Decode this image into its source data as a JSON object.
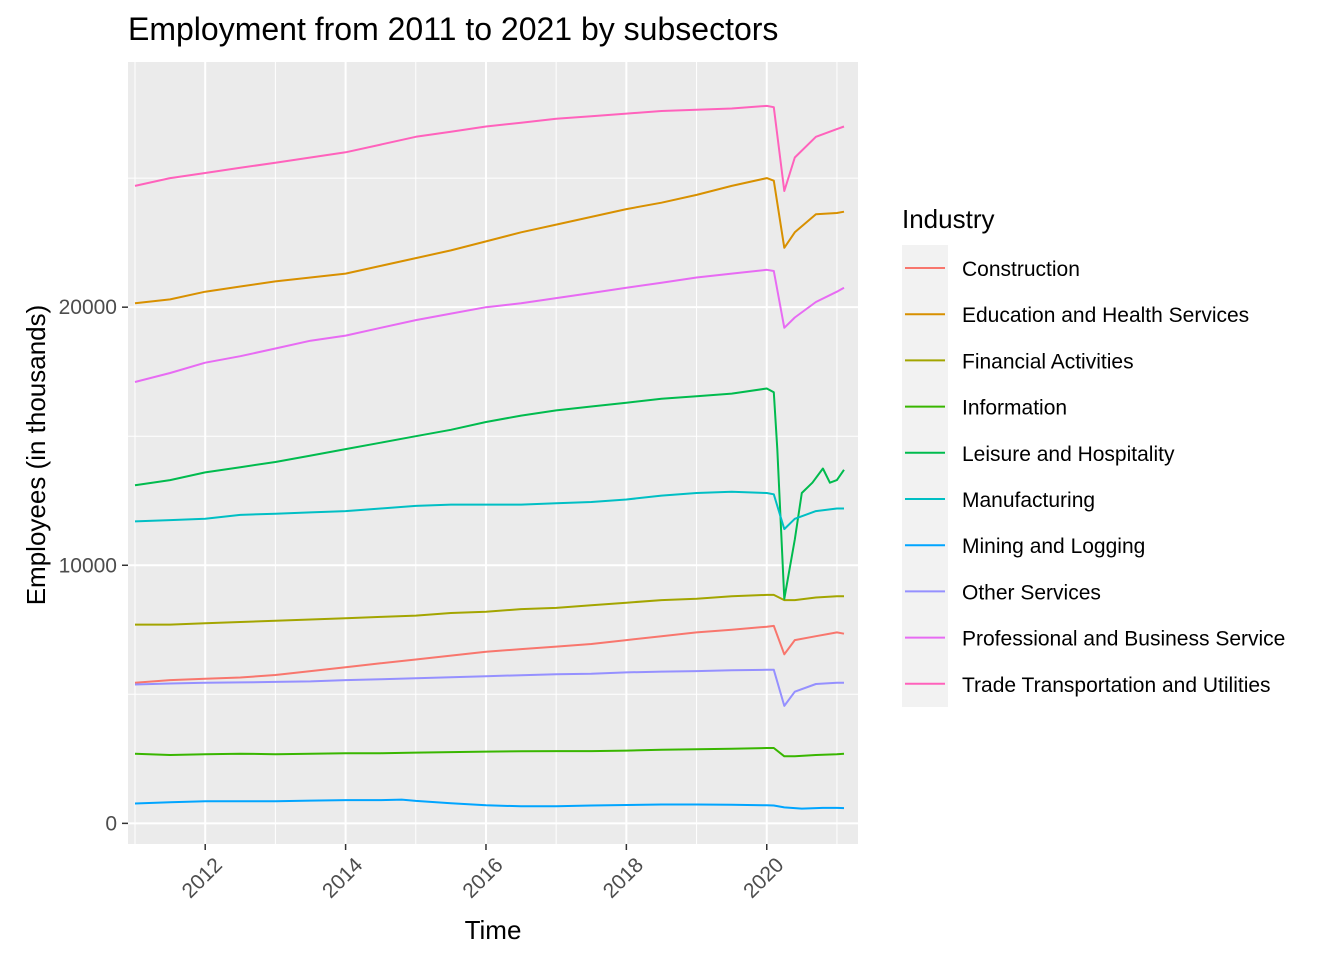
{
  "chart_data": {
    "type": "line",
    "title": "Employment from 2011 to 2021 by subsectors",
    "xlabel": "Time",
    "ylabel": "Employees (in thousands)",
    "xlim": [
      2010.9,
      2021.3
    ],
    "ylim": [
      -800,
      29500
    ],
    "x_ticks": [
      2012,
      2014,
      2016,
      2018,
      2020
    ],
    "y_ticks": [
      0,
      10000,
      20000
    ],
    "grid": true,
    "legend": {
      "title": "Industry",
      "placement": "right"
    },
    "series": [
      {
        "name": "Construction",
        "color": "#F8766D",
        "points": [
          [
            2011.0,
            5450
          ],
          [
            2011.5,
            5550
          ],
          [
            2012.0,
            5600
          ],
          [
            2012.5,
            5650
          ],
          [
            2013.0,
            5750
          ],
          [
            2013.5,
            5900
          ],
          [
            2014.0,
            6050
          ],
          [
            2014.5,
            6200
          ],
          [
            2015.0,
            6350
          ],
          [
            2015.5,
            6500
          ],
          [
            2016.0,
            6650
          ],
          [
            2016.5,
            6750
          ],
          [
            2017.0,
            6850
          ],
          [
            2017.5,
            6950
          ],
          [
            2018.0,
            7100
          ],
          [
            2018.5,
            7250
          ],
          [
            2019.0,
            7400
          ],
          [
            2019.5,
            7500
          ],
          [
            2020.0,
            7620
          ],
          [
            2020.1,
            7650
          ],
          [
            2020.25,
            6550
          ],
          [
            2020.4,
            7100
          ],
          [
            2020.7,
            7250
          ],
          [
            2021.0,
            7400
          ],
          [
            2021.1,
            7350
          ]
        ]
      },
      {
        "name": "Education and Health Services",
        "color": "#D89000",
        "points": [
          [
            2011.0,
            20150
          ],
          [
            2011.5,
            20300
          ],
          [
            2012.0,
            20600
          ],
          [
            2012.5,
            20800
          ],
          [
            2013.0,
            21000
          ],
          [
            2013.5,
            21150
          ],
          [
            2014.0,
            21300
          ],
          [
            2014.5,
            21600
          ],
          [
            2015.0,
            21900
          ],
          [
            2015.5,
            22200
          ],
          [
            2016.0,
            22550
          ],
          [
            2016.5,
            22900
          ],
          [
            2017.0,
            23200
          ],
          [
            2017.5,
            23500
          ],
          [
            2018.0,
            23800
          ],
          [
            2018.5,
            24050
          ],
          [
            2019.0,
            24350
          ],
          [
            2019.5,
            24700
          ],
          [
            2020.0,
            25000
          ],
          [
            2020.1,
            24900
          ],
          [
            2020.25,
            22300
          ],
          [
            2020.4,
            22900
          ],
          [
            2020.7,
            23600
          ],
          [
            2021.0,
            23650
          ],
          [
            2021.1,
            23700
          ]
        ]
      },
      {
        "name": "Financial Activities",
        "color": "#A3A500",
        "points": [
          [
            2011.0,
            7700
          ],
          [
            2011.5,
            7700
          ],
          [
            2012.0,
            7750
          ],
          [
            2012.5,
            7800
          ],
          [
            2013.0,
            7850
          ],
          [
            2013.5,
            7900
          ],
          [
            2014.0,
            7950
          ],
          [
            2014.5,
            8000
          ],
          [
            2015.0,
            8050
          ],
          [
            2015.5,
            8150
          ],
          [
            2016.0,
            8200
          ],
          [
            2016.5,
            8300
          ],
          [
            2017.0,
            8350
          ],
          [
            2017.5,
            8450
          ],
          [
            2018.0,
            8550
          ],
          [
            2018.5,
            8650
          ],
          [
            2019.0,
            8700
          ],
          [
            2019.5,
            8800
          ],
          [
            2020.0,
            8850
          ],
          [
            2020.1,
            8850
          ],
          [
            2020.25,
            8650
          ],
          [
            2020.4,
            8650
          ],
          [
            2020.7,
            8750
          ],
          [
            2021.0,
            8800
          ],
          [
            2021.1,
            8800
          ]
        ]
      },
      {
        "name": "Information",
        "color": "#39B600",
        "points": [
          [
            2011.0,
            2700
          ],
          [
            2011.5,
            2650
          ],
          [
            2012.0,
            2680
          ],
          [
            2012.5,
            2700
          ],
          [
            2013.0,
            2680
          ],
          [
            2013.5,
            2700
          ],
          [
            2014.0,
            2720
          ],
          [
            2014.5,
            2720
          ],
          [
            2015.0,
            2740
          ],
          [
            2015.5,
            2760
          ],
          [
            2016.0,
            2780
          ],
          [
            2016.5,
            2790
          ],
          [
            2017.0,
            2800
          ],
          [
            2017.5,
            2800
          ],
          [
            2018.0,
            2820
          ],
          [
            2018.5,
            2850
          ],
          [
            2019.0,
            2870
          ],
          [
            2019.5,
            2890
          ],
          [
            2020.0,
            2920
          ],
          [
            2020.1,
            2920
          ],
          [
            2020.25,
            2600
          ],
          [
            2020.4,
            2600
          ],
          [
            2020.7,
            2650
          ],
          [
            2021.0,
            2680
          ],
          [
            2021.1,
            2700
          ]
        ]
      },
      {
        "name": "Leisure and Hospitality",
        "color": "#00BB4E",
        "points": [
          [
            2011.0,
            13100
          ],
          [
            2011.5,
            13300
          ],
          [
            2012.0,
            13600
          ],
          [
            2012.5,
            13800
          ],
          [
            2013.0,
            14000
          ],
          [
            2013.5,
            14250
          ],
          [
            2014.0,
            14500
          ],
          [
            2014.5,
            14750
          ],
          [
            2015.0,
            15000
          ],
          [
            2015.5,
            15250
          ],
          [
            2016.0,
            15550
          ],
          [
            2016.5,
            15800
          ],
          [
            2017.0,
            16000
          ],
          [
            2017.5,
            16150
          ],
          [
            2018.0,
            16300
          ],
          [
            2018.5,
            16450
          ],
          [
            2019.0,
            16550
          ],
          [
            2019.5,
            16650
          ],
          [
            2020.0,
            16850
          ],
          [
            2020.1,
            16700
          ],
          [
            2020.15,
            14500
          ],
          [
            2020.25,
            8700
          ],
          [
            2020.4,
            11000
          ],
          [
            2020.5,
            12800
          ],
          [
            2020.65,
            13200
          ],
          [
            2020.8,
            13750
          ],
          [
            2020.9,
            13200
          ],
          [
            2021.0,
            13300
          ],
          [
            2021.1,
            13700
          ]
        ]
      },
      {
        "name": "Manufacturing",
        "color": "#00BFC4",
        "points": [
          [
            2011.0,
            11700
          ],
          [
            2011.5,
            11750
          ],
          [
            2012.0,
            11800
          ],
          [
            2012.5,
            11950
          ],
          [
            2013.0,
            12000
          ],
          [
            2013.5,
            12050
          ],
          [
            2014.0,
            12100
          ],
          [
            2014.5,
            12200
          ],
          [
            2015.0,
            12300
          ],
          [
            2015.5,
            12350
          ],
          [
            2016.0,
            12350
          ],
          [
            2016.5,
            12350
          ],
          [
            2017.0,
            12400
          ],
          [
            2017.5,
            12450
          ],
          [
            2018.0,
            12550
          ],
          [
            2018.5,
            12700
          ],
          [
            2019.0,
            12800
          ],
          [
            2019.5,
            12850
          ],
          [
            2020.0,
            12800
          ],
          [
            2020.1,
            12750
          ],
          [
            2020.25,
            11400
          ],
          [
            2020.4,
            11800
          ],
          [
            2020.7,
            12100
          ],
          [
            2021.0,
            12200
          ],
          [
            2021.1,
            12200
          ]
        ]
      },
      {
        "name": "Mining and Logging",
        "color": "#00A5FF",
        "points": [
          [
            2011.0,
            770
          ],
          [
            2011.5,
            820
          ],
          [
            2012.0,
            860
          ],
          [
            2012.5,
            860
          ],
          [
            2013.0,
            860
          ],
          [
            2013.5,
            880
          ],
          [
            2014.0,
            900
          ],
          [
            2014.5,
            900
          ],
          [
            2014.8,
            920
          ],
          [
            2015.0,
            870
          ],
          [
            2015.5,
            780
          ],
          [
            2016.0,
            700
          ],
          [
            2016.5,
            660
          ],
          [
            2017.0,
            660
          ],
          [
            2017.5,
            690
          ],
          [
            2018.0,
            710
          ],
          [
            2018.5,
            730
          ],
          [
            2019.0,
            730
          ],
          [
            2019.5,
            720
          ],
          [
            2020.0,
            700
          ],
          [
            2020.1,
            690
          ],
          [
            2020.25,
            620
          ],
          [
            2020.5,
            570
          ],
          [
            2020.8,
            600
          ],
          [
            2021.0,
            600
          ],
          [
            2021.1,
            590
          ]
        ]
      },
      {
        "name": "Other Services",
        "color": "#9590FF",
        "points": [
          [
            2011.0,
            5380
          ],
          [
            2011.5,
            5420
          ],
          [
            2012.0,
            5450
          ],
          [
            2012.5,
            5460
          ],
          [
            2013.0,
            5480
          ],
          [
            2013.5,
            5500
          ],
          [
            2014.0,
            5550
          ],
          [
            2014.5,
            5580
          ],
          [
            2015.0,
            5620
          ],
          [
            2015.5,
            5660
          ],
          [
            2016.0,
            5700
          ],
          [
            2016.5,
            5740
          ],
          [
            2017.0,
            5780
          ],
          [
            2017.5,
            5800
          ],
          [
            2018.0,
            5850
          ],
          [
            2018.5,
            5880
          ],
          [
            2019.0,
            5900
          ],
          [
            2019.5,
            5930
          ],
          [
            2020.0,
            5950
          ],
          [
            2020.1,
            5950
          ],
          [
            2020.25,
            4550
          ],
          [
            2020.4,
            5100
          ],
          [
            2020.7,
            5400
          ],
          [
            2021.0,
            5450
          ],
          [
            2021.1,
            5450
          ]
        ]
      },
      {
        "name": "Professional and Business Service",
        "color": "#E76BF3",
        "points": [
          [
            2011.0,
            17100
          ],
          [
            2011.5,
            17450
          ],
          [
            2012.0,
            17850
          ],
          [
            2012.5,
            18100
          ],
          [
            2013.0,
            18400
          ],
          [
            2013.5,
            18700
          ],
          [
            2014.0,
            18900
          ],
          [
            2014.5,
            19200
          ],
          [
            2015.0,
            19500
          ],
          [
            2015.5,
            19750
          ],
          [
            2016.0,
            20000
          ],
          [
            2016.5,
            20150
          ],
          [
            2017.0,
            20350
          ],
          [
            2017.5,
            20550
          ],
          [
            2018.0,
            20750
          ],
          [
            2018.5,
            20950
          ],
          [
            2019.0,
            21150
          ],
          [
            2019.5,
            21300
          ],
          [
            2020.0,
            21450
          ],
          [
            2020.1,
            21400
          ],
          [
            2020.25,
            19200
          ],
          [
            2020.4,
            19600
          ],
          [
            2020.7,
            20200
          ],
          [
            2021.0,
            20600
          ],
          [
            2021.1,
            20750
          ]
        ]
      },
      {
        "name": "Trade Transportation and Utilities",
        "color": "#FF62BC",
        "points": [
          [
            2011.0,
            24700
          ],
          [
            2011.5,
            25000
          ],
          [
            2012.0,
            25200
          ],
          [
            2012.5,
            25400
          ],
          [
            2013.0,
            25600
          ],
          [
            2013.5,
            25800
          ],
          [
            2014.0,
            26000
          ],
          [
            2014.5,
            26300
          ],
          [
            2015.0,
            26600
          ],
          [
            2015.5,
            26800
          ],
          [
            2016.0,
            27000
          ],
          [
            2016.5,
            27150
          ],
          [
            2017.0,
            27300
          ],
          [
            2017.5,
            27400
          ],
          [
            2018.0,
            27500
          ],
          [
            2018.5,
            27600
          ],
          [
            2019.0,
            27650
          ],
          [
            2019.5,
            27700
          ],
          [
            2020.0,
            27800
          ],
          [
            2020.1,
            27750
          ],
          [
            2020.25,
            24500
          ],
          [
            2020.4,
            25800
          ],
          [
            2020.7,
            26600
          ],
          [
            2021.0,
            26900
          ],
          [
            2021.1,
            27000
          ]
        ]
      }
    ]
  }
}
